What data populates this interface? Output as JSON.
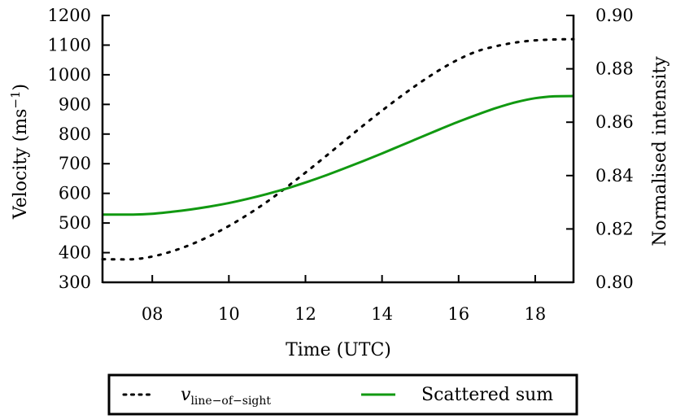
{
  "chart_data": {
    "type": "line",
    "xlabel": "Time (UTC)",
    "ylabel_left": "Velocity (ms",
    "ylabel_left_sup": "−1",
    "ylabel_left_close": ")",
    "ylabel_right": "Normalised intensity",
    "xlim": [
      6.7,
      19.0
    ],
    "ylim_left": [
      300,
      1200
    ],
    "ylim_right": [
      0.8,
      0.9
    ],
    "x_ticks": [
      8,
      10,
      12,
      14,
      16,
      18
    ],
    "x_tick_labels": [
      "08",
      "10",
      "12",
      "14",
      "16",
      "18"
    ],
    "y_left_ticks": [
      300,
      400,
      500,
      600,
      700,
      800,
      900,
      1000,
      1100,
      1200
    ],
    "y_left_tick_labels": [
      "300",
      "400",
      "500",
      "600",
      "700",
      "800",
      "900",
      "1000",
      "1100",
      "1200"
    ],
    "y_right_ticks": [
      0.8,
      0.82,
      0.84,
      0.86,
      0.88,
      0.9
    ],
    "y_right_tick_labels": [
      "0.80",
      "0.82",
      "0.84",
      "0.86",
      "0.88",
      "0.90"
    ],
    "grid": false,
    "legend_position": "bottom",
    "series": [
      {
        "name_main": "v",
        "name_sub": "line−of−sight",
        "axis": "left",
        "style": "dotted",
        "color": "#000000",
        "x": [
          6.7,
          7.5,
          8.0,
          8.5,
          9.0,
          9.5,
          10.0,
          10.5,
          11.0,
          11.5,
          12.0,
          12.5,
          13.0,
          13.5,
          14.0,
          14.5,
          15.0,
          15.5,
          16.0,
          16.5,
          17.0,
          17.5,
          18.0,
          18.5,
          19.0
        ],
        "values": [
          378,
          378,
          387,
          404,
          427,
          456,
          490,
          529,
          572,
          620,
          670,
          722,
          775,
          828,
          879,
          928,
          974,
          1016,
          1052,
          1080,
          1097,
          1109,
          1116,
          1119,
          1120
        ]
      },
      {
        "name": "Scattered sum",
        "axis": "right",
        "style": "solid",
        "color": "#119911",
        "x": [
          6.7,
          7.5,
          8.0,
          8.5,
          9.0,
          9.5,
          10.0,
          10.5,
          11.0,
          11.5,
          12.0,
          12.5,
          13.0,
          13.5,
          14.0,
          14.5,
          15.0,
          15.5,
          16.0,
          16.5,
          17.0,
          17.5,
          18.0,
          18.5,
          19.0
        ],
        "values": [
          0.8254,
          0.8254,
          0.8257,
          0.8264,
          0.8273,
          0.8284,
          0.8297,
          0.8313,
          0.8331,
          0.8351,
          0.8374,
          0.8399,
          0.8426,
          0.8454,
          0.8483,
          0.8513,
          0.8543,
          0.8573,
          0.8602,
          0.8629,
          0.8654,
          0.8675,
          0.869,
          0.8697,
          0.8698
        ]
      }
    ]
  }
}
